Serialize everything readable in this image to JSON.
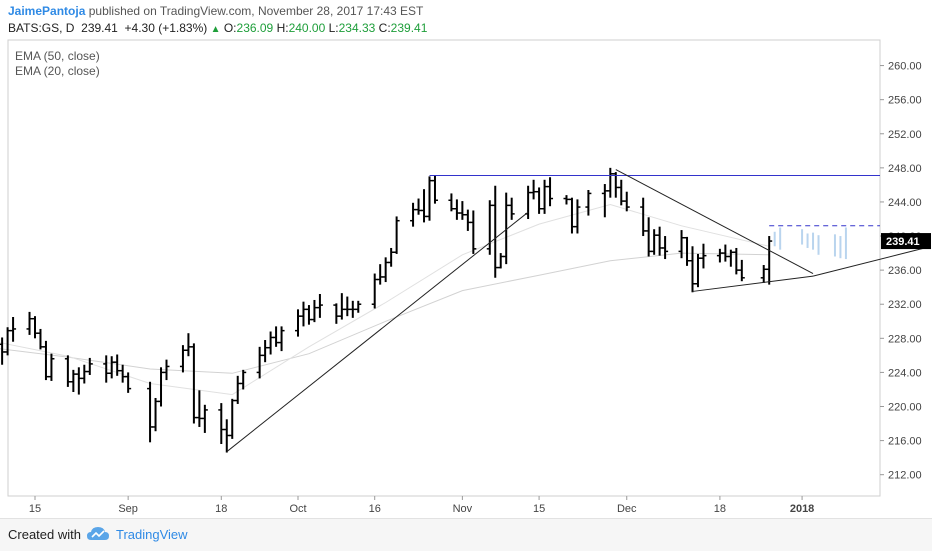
{
  "header": {
    "author": "JaimePantoja",
    "published_text": "published on TradingView.com, November 28, 2017 17:43 EST",
    "symbol": "BATS:GS, D",
    "last": "239.41",
    "change": "+4.30 (+1.83%)",
    "o_label": "O:",
    "o_value": "236.09",
    "h_label": "H:",
    "h_value": "240.00",
    "l_label": "L:",
    "l_value": "234.33",
    "c_label": "C:",
    "c_value": "239.41"
  },
  "footer": {
    "created_with": "Created with",
    "brand": "TradingView"
  },
  "colors": {
    "up": "#1e9e3a",
    "bar": "#000000",
    "resistance": "#3333cc",
    "price_badge": "#000000"
  },
  "chart_data": {
    "type": "ohlc",
    "legend": [
      "EMA (50, close)",
      "EMA (20, close)"
    ],
    "legend_placement": "top-left",
    "y_ticks": [
      212,
      216,
      220,
      224,
      228,
      232,
      236,
      240,
      244,
      248,
      252,
      256,
      260
    ],
    "ylim": [
      209.5,
      263
    ],
    "last_price_label": "239.41",
    "last_price": 239.41,
    "x_ticks": [
      {
        "label": "15",
        "date": "2017-08-15"
      },
      {
        "label": "Sep",
        "date": "2017-09-01"
      },
      {
        "label": "18",
        "date": "2017-09-18"
      },
      {
        "label": "Oct",
        "date": "2017-10-02"
      },
      {
        "label": "16",
        "date": "2017-10-16"
      },
      {
        "label": "Nov",
        "date": "2017-11-01"
      },
      {
        "label": "15",
        "date": "2017-11-15"
      },
      {
        "label": "Dec",
        "date": "2017-12-01"
      },
      {
        "label": "18",
        "date": "2017-12-18"
      },
      {
        "label": "2018",
        "date": "2018-01-02"
      }
    ],
    "ohlc": [
      [
        "2017-08-07",
        229.5,
        230.9,
        227.5,
        228.8
      ],
      [
        "2017-08-08",
        228.8,
        229.8,
        226.9,
        227.3
      ],
      [
        "2017-08-09",
        227.3,
        228.1,
        224.9,
        226.4
      ],
      [
        "2017-08-10",
        226.4,
        229.3,
        226.0,
        228.9
      ],
      [
        "2017-08-11",
        228.9,
        230.5,
        227.6,
        229.1
      ],
      [
        "2017-08-14",
        229.1,
        231.1,
        228.4,
        230.3
      ],
      [
        "2017-08-15",
        230.3,
        230.6,
        228.0,
        228.6
      ],
      [
        "2017-08-16",
        228.6,
        229.1,
        226.7,
        227.0
      ],
      [
        "2017-08-17",
        227.0,
        227.7,
        223.1,
        223.5
      ],
      [
        "2017-08-18",
        223.5,
        226.2,
        223.0,
        225.6
      ],
      [
        "2017-08-21",
        225.6,
        226.0,
        222.3,
        222.9
      ],
      [
        "2017-08-22",
        222.9,
        224.3,
        221.7,
        223.8
      ],
      [
        "2017-08-23",
        223.8,
        224.6,
        221.4,
        223.3
      ],
      [
        "2017-08-24",
        223.3,
        224.9,
        222.7,
        224.1
      ],
      [
        "2017-08-25",
        224.1,
        225.7,
        223.7,
        225.0
      ],
      [
        "2017-08-28",
        225.0,
        226.0,
        222.8,
        223.9
      ],
      [
        "2017-08-29",
        223.9,
        225.9,
        223.3,
        225.2
      ],
      [
        "2017-08-30",
        225.2,
        226.1,
        223.6,
        224.2
      ],
      [
        "2017-08-31",
        224.2,
        224.9,
        222.8,
        223.5
      ],
      [
        "2017-09-01",
        223.5,
        224.0,
        221.6,
        222.1
      ],
      [
        "2017-09-05",
        222.1,
        222.9,
        215.8,
        217.6
      ],
      [
        "2017-09-06",
        217.6,
        221.0,
        217.1,
        220.6
      ],
      [
        "2017-09-07",
        220.6,
        224.6,
        220.0,
        224.0
      ],
      [
        "2017-09-08",
        224.0,
        225.5,
        223.1,
        224.7
      ],
      [
        "2017-09-11",
        224.7,
        227.2,
        224.0,
        226.6
      ],
      [
        "2017-09-12",
        226.6,
        228.6,
        225.9,
        227.0
      ],
      [
        "2017-09-13",
        227.0,
        227.4,
        218.0,
        218.7
      ],
      [
        "2017-09-14",
        218.7,
        221.9,
        217.6,
        218.6
      ],
      [
        "2017-09-15",
        218.6,
        220.2,
        216.9,
        219.6
      ],
      [
        "2017-09-18",
        219.6,
        220.4,
        215.6,
        217.3
      ],
      [
        "2017-09-19",
        217.3,
        218.5,
        214.6,
        216.6
      ],
      [
        "2017-09-20",
        216.6,
        220.9,
        216.2,
        220.7
      ],
      [
        "2017-09-21",
        220.7,
        223.6,
        220.3,
        222.7
      ],
      [
        "2017-09-22",
        222.7,
        224.3,
        222.0,
        224.0
      ],
      [
        "2017-09-25",
        224.0,
        227.0,
        223.3,
        226.0
      ],
      [
        "2017-09-26",
        226.0,
        227.8,
        225.2,
        226.9
      ],
      [
        "2017-09-27",
        226.9,
        228.8,
        226.1,
        228.1
      ],
      [
        "2017-09-28",
        228.1,
        229.4,
        227.0,
        227.5
      ],
      [
        "2017-09-29",
        227.5,
        229.4,
        226.5,
        228.9
      ],
      [
        "2017-10-02",
        228.9,
        231.4,
        228.2,
        230.6
      ],
      [
        "2017-10-03",
        230.6,
        232.3,
        229.4,
        231.4
      ],
      [
        "2017-10-04",
        231.4,
        231.9,
        229.6,
        230.2
      ],
      [
        "2017-10-05",
        230.2,
        232.5,
        229.9,
        231.6
      ],
      [
        "2017-10-06",
        231.6,
        233.2,
        230.4,
        231.9
      ],
      [
        "2017-10-09",
        231.9,
        232.1,
        229.7,
        230.6
      ],
      [
        "2017-10-10",
        230.6,
        233.3,
        230.2,
        231.4
      ],
      [
        "2017-10-11",
        231.4,
        232.9,
        230.6,
        231.4
      ],
      [
        "2017-10-12",
        231.4,
        232.4,
        230.4,
        231.4
      ],
      [
        "2017-10-13",
        231.4,
        232.4,
        231.0,
        232.0
      ],
      [
        "2017-10-16",
        232.0,
        235.6,
        231.5,
        234.9
      ],
      [
        "2017-10-17",
        234.9,
        236.7,
        234.3,
        235.2
      ],
      [
        "2017-10-18",
        235.2,
        237.5,
        234.6,
        236.9
      ],
      [
        "2017-10-19",
        236.9,
        238.6,
        236.4,
        238.1
      ],
      [
        "2017-10-20",
        238.1,
        242.3,
        237.9,
        241.8
      ],
      [
        "2017-10-23",
        241.8,
        243.9,
        241.1,
        243.1
      ],
      [
        "2017-10-24",
        243.1,
        244.4,
        242.5,
        243.0
      ],
      [
        "2017-10-25",
        243.0,
        245.5,
        241.6,
        242.3
      ],
      [
        "2017-10-26",
        242.3,
        247.0,
        241.8,
        246.5
      ],
      [
        "2017-10-27",
        246.5,
        247.1,
        243.8,
        244.2
      ],
      [
        "2017-10-30",
        244.2,
        245.0,
        242.9,
        243.2
      ],
      [
        "2017-10-31",
        243.2,
        244.3,
        241.9,
        242.7
      ],
      [
        "2017-11-01",
        242.7,
        244.1,
        241.9,
        242.5
      ],
      [
        "2017-11-02",
        242.5,
        243.1,
        240.6,
        241.6
      ],
      [
        "2017-11-03",
        241.6,
        243.0,
        237.9,
        238.5
      ],
      [
        "2017-11-06",
        238.5,
        244.2,
        237.8,
        243.6
      ],
      [
        "2017-11-07",
        243.6,
        245.9,
        235.1,
        236.3
      ],
      [
        "2017-11-08",
        236.3,
        238.0,
        236.2,
        237.6
      ],
      [
        "2017-11-09",
        237.6,
        245.1,
        236.7,
        243.6
      ],
      [
        "2017-11-10",
        243.6,
        244.5,
        241.9,
        242.6
      ],
      [
        "2017-11-13",
        242.6,
        245.9,
        242.0,
        245.1
      ],
      [
        "2017-11-14",
        245.1,
        246.6,
        244.3,
        245.2
      ],
      [
        "2017-11-15",
        245.2,
        245.7,
        242.6,
        243.2
      ],
      [
        "2017-11-16",
        243.2,
        246.6,
        242.6,
        245.8
      ],
      [
        "2017-11-17",
        245.8,
        246.9,
        243.5,
        244.4
      ],
      [
        "2017-11-20",
        244.4,
        244.8,
        243.7,
        244.3
      ],
      [
        "2017-11-21",
        244.3,
        244.5,
        240.3,
        241.1
      ],
      [
        "2017-11-22",
        241.1,
        244.3,
        240.3,
        243.4
      ],
      [
        "2017-11-24",
        243.4,
        245.4,
        242.4,
        245.0
      ],
      [
        "2017-11-27",
        245.0,
        246.1,
        242.2,
        245.3
      ],
      [
        "2017-11-28",
        245.3,
        248.0,
        244.5,
        247.3
      ],
      [
        "2017-11-29",
        247.3,
        247.5,
        244.5,
        245.7
      ],
      [
        "2017-11-30",
        245.7,
        246.6,
        243.6,
        244.1
      ],
      [
        "2017-12-01",
        244.1,
        245.2,
        242.9,
        243.4
      ],
      [
        "2017-12-04",
        243.4,
        244.5,
        240.0,
        240.6
      ],
      [
        "2017-12-05",
        240.6,
        242.2,
        237.6,
        238.2
      ],
      [
        "2017-12-06",
        238.2,
        240.8,
        237.8,
        240.1
      ],
      [
        "2017-12-07",
        240.1,
        241.1,
        237.7,
        238.6
      ],
      [
        "2017-12-08",
        238.6,
        240.0,
        237.3,
        238.2
      ],
      [
        "2017-12-11",
        238.2,
        240.7,
        237.4,
        239.8
      ],
      [
        "2017-12-12",
        239.8,
        239.9,
        236.5,
        237.1
      ],
      [
        "2017-12-13",
        237.1,
        238.8,
        233.4,
        234.4
      ],
      [
        "2017-12-14",
        234.4,
        237.9,
        234.0,
        237.4
      ],
      [
        "2017-12-15",
        237.4,
        239.1,
        236.2,
        237.7
      ],
      [
        "2017-12-18",
        237.7,
        238.5,
        236.9,
        238.0
      ],
      [
        "2017-12-19",
        238.0,
        239.0,
        237.0,
        237.6
      ],
      [
        "2017-12-20",
        237.6,
        238.4,
        236.4,
        238.1
      ],
      [
        "2017-12-21",
        238.1,
        238.6,
        235.5,
        236.0
      ],
      [
        "2017-12-22",
        236.0,
        237.2,
        234.7,
        235.1
      ],
      [
        "2017-12-26",
        235.1,
        236.6,
        234.5,
        236.1
      ],
      [
        "2017-12-27",
        236.1,
        240.0,
        234.3,
        239.41
      ]
    ],
    "ema50": [
      [
        "2017-08-07",
        226.9
      ],
      [
        "2017-08-21",
        225.8
      ],
      [
        "2017-09-05",
        224.4
      ],
      [
        "2017-09-20",
        223.9
      ],
      [
        "2017-10-04",
        226.2
      ],
      [
        "2017-10-18",
        230.0
      ],
      [
        "2017-11-01",
        233.6
      ],
      [
        "2017-11-15",
        235.4
      ],
      [
        "2017-11-28",
        237.1
      ],
      [
        "2017-12-11",
        238.0
      ],
      [
        "2017-12-27",
        237.8
      ]
    ],
    "ema20": [
      [
        "2017-08-07",
        227.7
      ],
      [
        "2017-08-21",
        225.9
      ],
      [
        "2017-09-05",
        222.7
      ],
      [
        "2017-09-20",
        221.4
      ],
      [
        "2017-10-04",
        227.0
      ],
      [
        "2017-10-18",
        232.2
      ],
      [
        "2017-11-01",
        237.8
      ],
      [
        "2017-11-15",
        241.4
      ],
      [
        "2017-11-28",
        243.7
      ],
      [
        "2017-12-11",
        241.2
      ],
      [
        "2017-12-27",
        238.8
      ]
    ],
    "projection_bars": [
      [
        "2017-12-28",
        240.5,
        238.8
      ],
      [
        "2017-12-29",
        241.0,
        238.4
      ],
      [
        "2018-01-02",
        240.8,
        239.0
      ],
      [
        "2018-01-03",
        240.3,
        238.6
      ],
      [
        "2018-01-04",
        240.4,
        238.4
      ],
      [
        "2018-01-05",
        240.1,
        237.8
      ],
      [
        "2018-01-08",
        240.2,
        237.6
      ],
      [
        "2018-01-09",
        240.0,
        237.4
      ],
      [
        "2018-01-10",
        241.0,
        237.3
      ]
    ],
    "trendlines": [
      {
        "type": "support",
        "from": [
          "2017-09-19",
          214.7
        ],
        "to": [
          "2017-11-13",
          242.8
        ]
      },
      {
        "type": "resistance",
        "from": [
          "2017-11-29",
          247.8
        ],
        "to": [
          "2018-01-04",
          235.6
        ]
      },
      {
        "type": "support",
        "from": [
          "2017-12-13",
          233.5
        ],
        "to": [
          "2018-01-04",
          235.3
        ]
      },
      {
        "type": "support",
        "from": [
          "2018-01-04",
          235.3
        ],
        "to": [
          "2018-01-25",
          238.7
        ]
      }
    ],
    "hlines": [
      {
        "type": "resistance",
        "price": 247.1,
        "from": "2017-10-26",
        "style": "solid"
      },
      {
        "type": "target",
        "price": 241.2,
        "from": "2017-12-27",
        "style": "dashed"
      }
    ]
  }
}
